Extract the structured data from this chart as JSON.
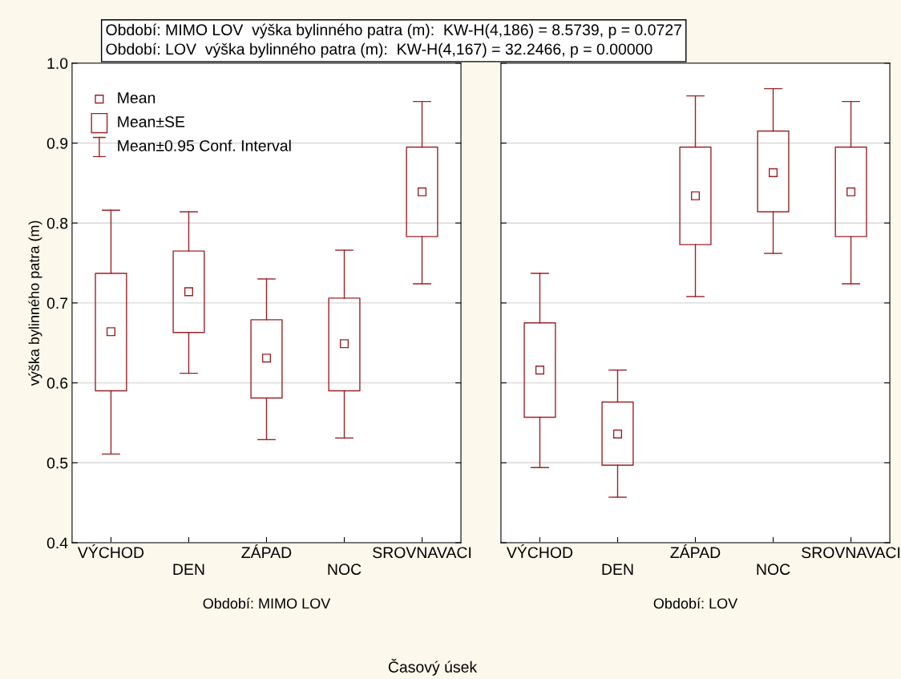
{
  "chart_data": [
    {
      "type": "box",
      "xlabel": "Období: MIMO LOV",
      "ylabel": "výška bylinného patra (m)",
      "categories": [
        "VÝCHOD",
        "DEN",
        "ZÁPAD",
        "NOC",
        "SROVNAVACI"
      ],
      "ylim": [
        0.4,
        1.0
      ],
      "yticks": [
        {
          "value": 0.4,
          "label": "0.4"
        },
        {
          "value": 0.5,
          "label": "0.5"
        },
        {
          "value": 0.6,
          "label": "0.6"
        },
        {
          "value": 0.7,
          "label": "0.7"
        },
        {
          "value": 0.8,
          "label": "0.8"
        },
        {
          "value": 0.9,
          "label": "0.9"
        },
        {
          "value": 1.0,
          "label": "1.0"
        }
      ],
      "grid": "y",
      "marker": "square",
      "series": [
        {
          "color": "#9b2226",
          "boxes": [
            {
              "low": 0.511,
              "q1": 0.59,
              "median": 0.664,
              "q3": 0.737,
              "high": 0.816
            },
            {
              "low": 0.612,
              "q1": 0.663,
              "median": 0.714,
              "q3": 0.765,
              "high": 0.814
            },
            {
              "low": 0.529,
              "q1": 0.581,
              "median": 0.631,
              "q3": 0.679,
              "high": 0.73
            },
            {
              "low": 0.531,
              "q1": 0.59,
              "median": 0.649,
              "q3": 0.706,
              "high": 0.766
            },
            {
              "low": 0.724,
              "q1": 0.783,
              "median": 0.839,
              "q3": 0.895,
              "high": 0.952
            }
          ]
        }
      ],
      "annotations": [
        "Období: MIMO LOV  výška bylinného patra (m):  KW-H(4,186) = 8.5739, p = 0.0727",
        "Mean",
        "Mean±SE",
        "Mean±0.95 Conf. Interval"
      ]
    },
    {
      "type": "box",
      "xlabel": "Období: LOV",
      "categories": [
        "VÝCHOD",
        "DEN",
        "ZÁPAD",
        "NOC",
        "SROVNAVACI"
      ],
      "ylim": [
        0.4,
        1.0
      ],
      "yticks": [
        {
          "value": 0.4,
          "label": null
        },
        {
          "value": 0.5,
          "label": null
        },
        {
          "value": 0.6,
          "label": null
        },
        {
          "value": 0.7,
          "label": null
        },
        {
          "value": 0.8,
          "label": null
        },
        {
          "value": 0.9,
          "label": null
        },
        {
          "value": 1.0,
          "label": null
        }
      ],
      "grid": "y",
      "tick_labels": "x",
      "marker": "square",
      "series": [
        {
          "color": "#9b2226",
          "boxes": [
            {
              "low": 0.494,
              "q1": 0.557,
              "median": 0.616,
              "q3": 0.675,
              "high": 0.737
            },
            {
              "low": 0.457,
              "q1": 0.497,
              "median": 0.536,
              "q3": 0.576,
              "high": 0.616
            },
            {
              "low": 0.708,
              "q1": 0.773,
              "median": 0.834,
              "q3": 0.895,
              "high": 0.959
            },
            {
              "low": 0.762,
              "q1": 0.814,
              "median": 0.863,
              "q3": 0.915,
              "high": 0.968
            },
            {
              "low": 0.724,
              "q1": 0.783,
              "median": 0.839,
              "q3": 0.895,
              "high": 0.952
            }
          ]
        }
      ],
      "annotations": [
        "Období: LOV  výška bylinného patra (m):  KW-H(4,167) = 32.2466, p = 0.00000",
        "Časový úsek"
      ]
    }
  ]
}
